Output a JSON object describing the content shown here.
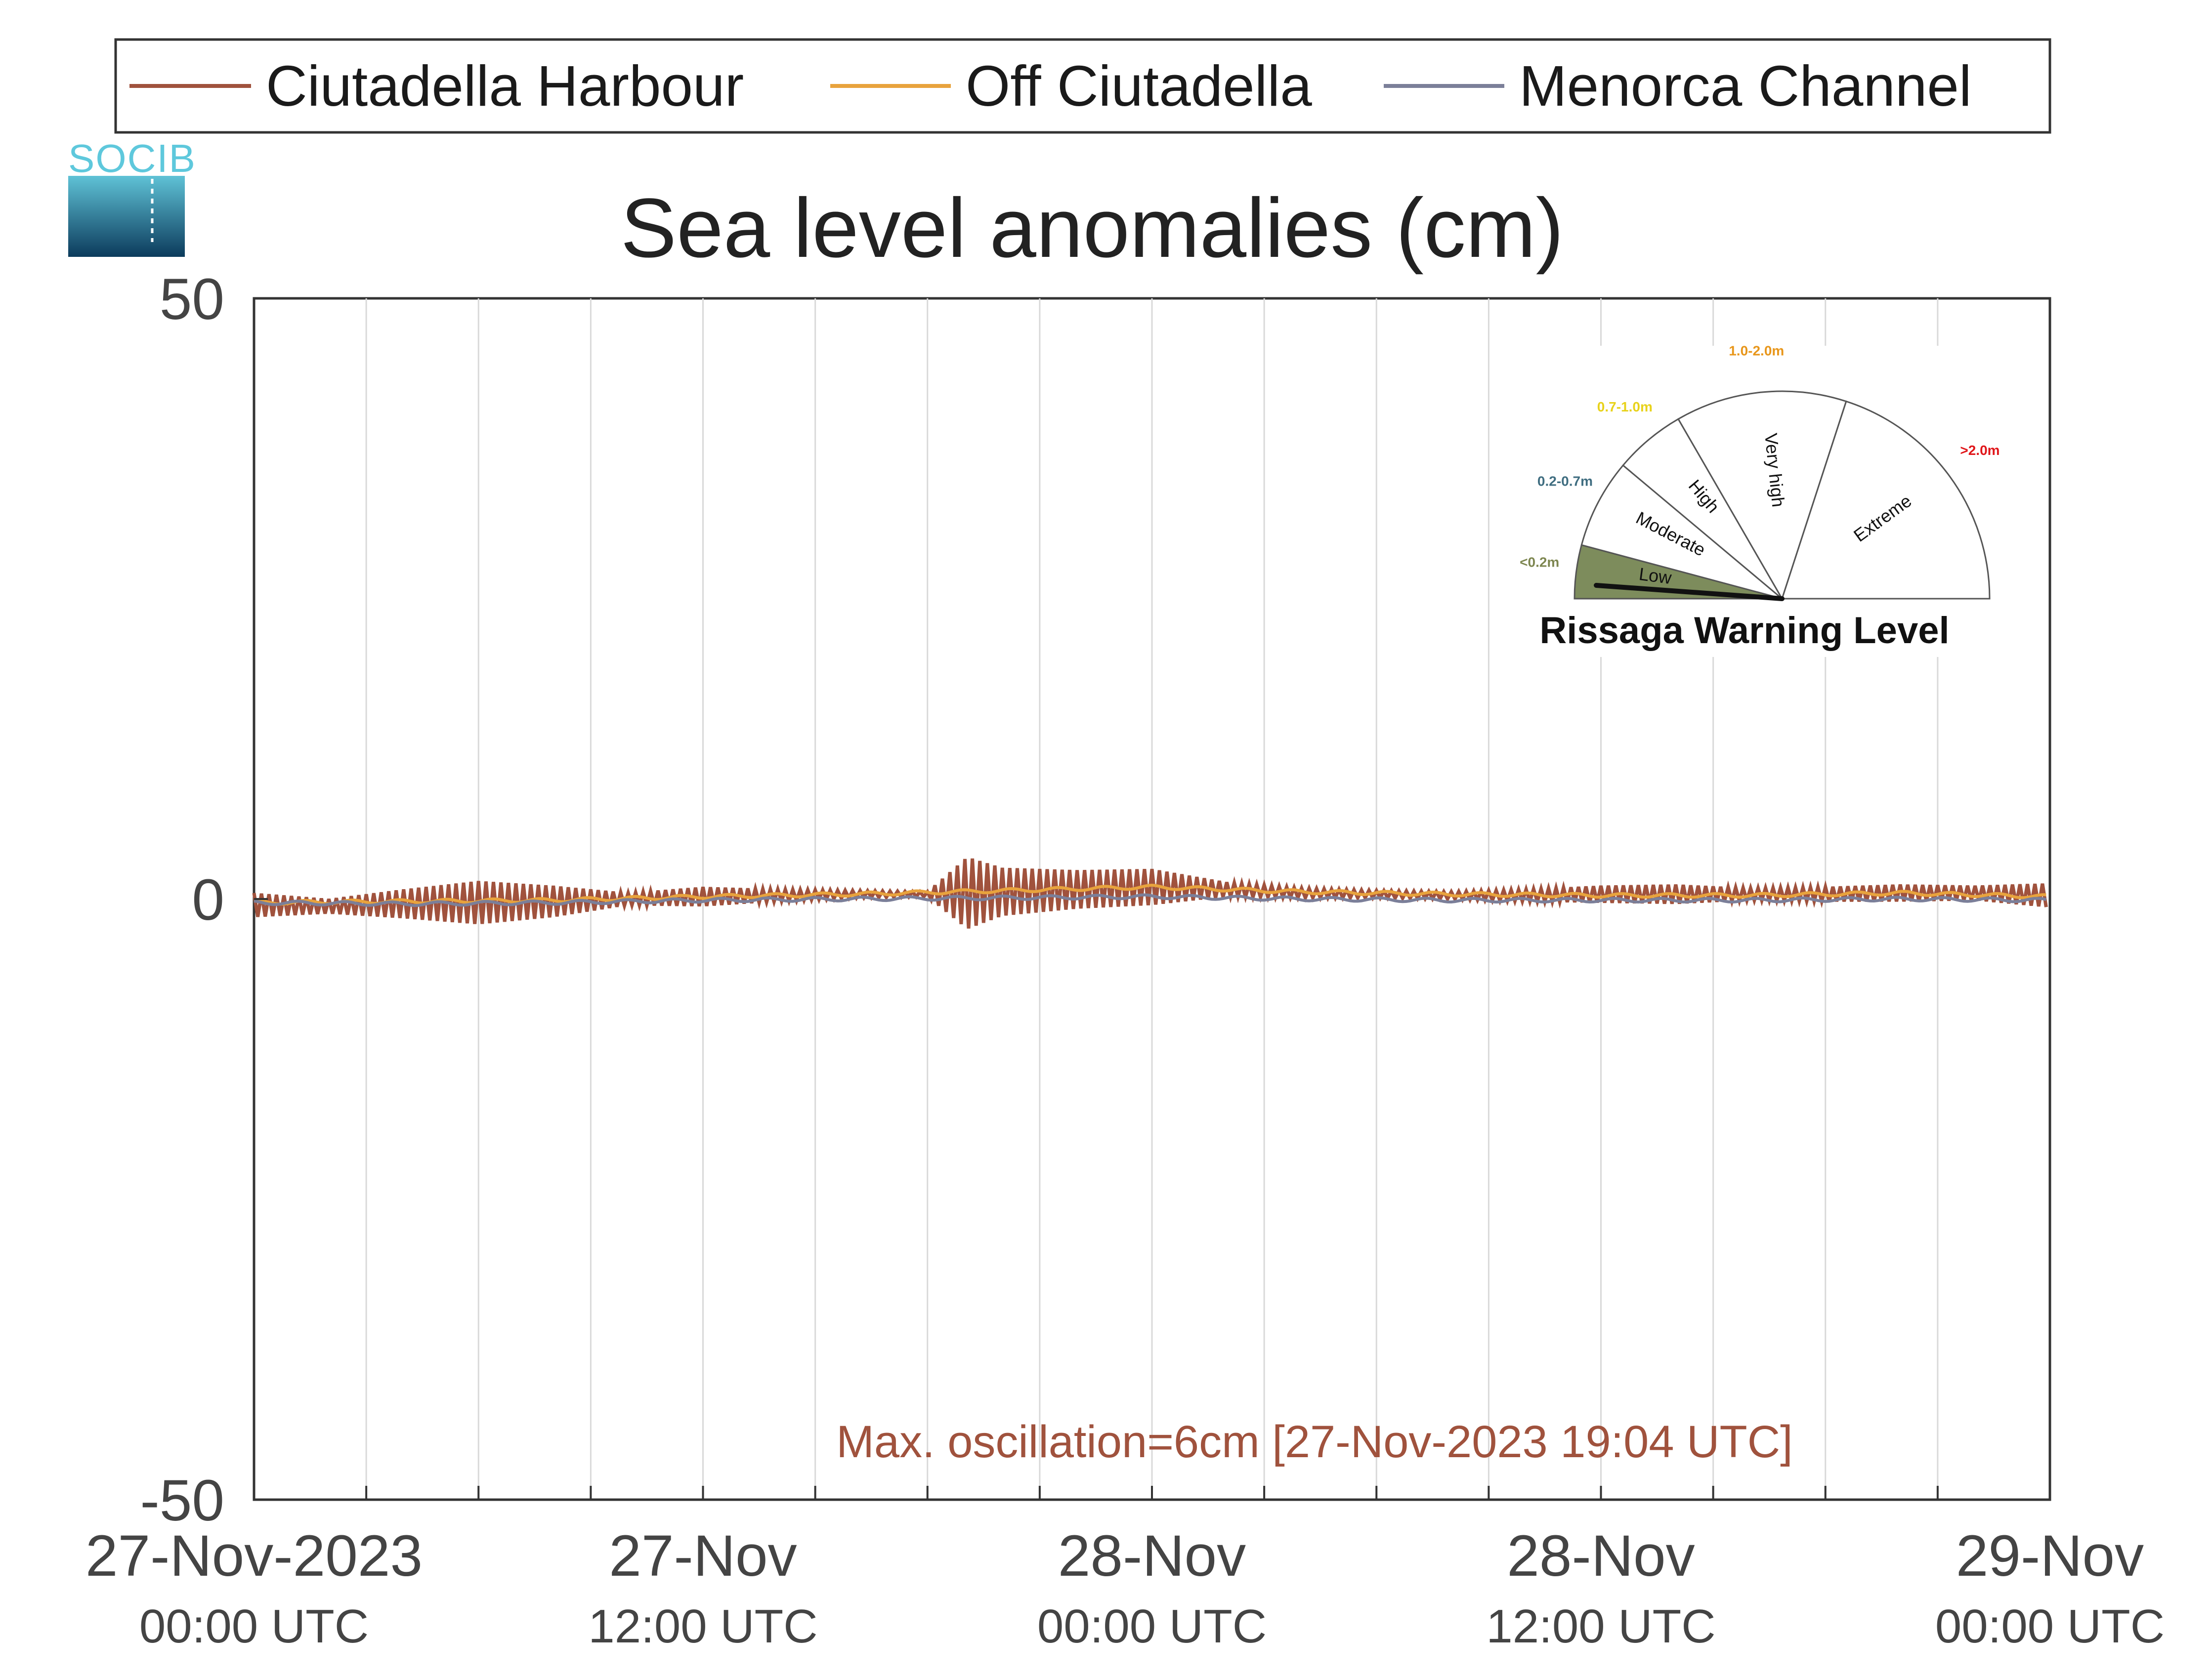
{
  "legend": {
    "items": [
      {
        "label": "Ciutadella Harbour",
        "color": "#a0523d"
      },
      {
        "label": "Off Ciutadella",
        "color": "#e8a33d"
      },
      {
        "label": "Menorca Channel",
        "color": "#7b7f99"
      }
    ]
  },
  "logo": {
    "text": "SOCIB",
    "icon": "socib-logo-icon"
  },
  "chart_data": {
    "type": "line",
    "title": "Sea level anomalies (cm)",
    "ylabel": "",
    "ylim": [
      -50,
      50
    ],
    "yticks": [
      50,
      0,
      -50
    ],
    "ytick_labels": [
      "50",
      "0",
      "-50"
    ],
    "x_range_hours": [
      0,
      48
    ],
    "x_unit": "hours since 27-Nov-2023 00:00 UTC",
    "xticks": [
      {
        "hour": 0,
        "line1": "27-Nov-2023",
        "line2": "00:00 UTC"
      },
      {
        "hour": 12,
        "line1": "27-Nov",
        "line2": "12:00 UTC"
      },
      {
        "hour": 24,
        "line1": "28-Nov",
        "line2": "00:00 UTC"
      },
      {
        "hour": 36,
        "line1": "28-Nov",
        "line2": "12:00 UTC"
      },
      {
        "hour": 48,
        "line1": "29-Nov",
        "line2": "00:00 UTC"
      }
    ],
    "grid_hours": [
      3,
      6,
      9,
      12,
      15,
      18,
      21,
      24,
      27,
      30,
      33,
      36,
      39,
      42,
      45
    ],
    "grid": true,
    "legend_position": "top",
    "series": [
      {
        "name": "Ciutadella Harbour",
        "color": "#a0523d",
        "envelope_hour": [
          0,
          2,
          4,
          6,
          8,
          10,
          12,
          14,
          16,
          18,
          19.06,
          20,
          22,
          24,
          26,
          28,
          30,
          32,
          34,
          36,
          38,
          40,
          42,
          44,
          46,
          48
        ],
        "envelope_amplitude": [
          1.0,
          0.6,
          1.2,
          1.8,
          1.3,
          0.5,
          0.8,
          0.5,
          0.3,
          0.2,
          3.0,
          2.0,
          1.6,
          1.5,
          0.6,
          0.4,
          0.3,
          0.3,
          0.5,
          0.7,
          0.8,
          0.5,
          0.6,
          0.7,
          0.6,
          1.0
        ],
        "baseline": [
          -0.5,
          -0.6,
          -0.4,
          -0.3,
          -0.2,
          0.0,
          0.2,
          0.3,
          0.4,
          0.4,
          0.5,
          0.6,
          0.8,
          1.0,
          0.8,
          0.5,
          0.4,
          0.3,
          0.3,
          0.4,
          0.4,
          0.4,
          0.4,
          0.5,
          0.5,
          0.3
        ]
      },
      {
        "name": "Off Ciutadella",
        "color": "#e8a33d",
        "hour": [
          0,
          4,
          8,
          12,
          16,
          20,
          24,
          28,
          32,
          36,
          40,
          44,
          48
        ],
        "values": [
          -0.3,
          -0.2,
          -0.1,
          0.2,
          0.4,
          0.7,
          1.0,
          0.6,
          0.4,
          0.3,
          0.3,
          0.5,
          0.2
        ]
      },
      {
        "name": "Menorca Channel",
        "color": "#7b7f99",
        "hour": [
          0,
          4,
          8,
          12,
          16,
          20,
          24,
          28,
          32,
          36,
          40,
          44,
          48
        ],
        "values": [
          -0.3,
          -0.4,
          -0.3,
          -0.1,
          0.0,
          0.1,
          0.2,
          0.0,
          -0.1,
          -0.1,
          -0.1,
          0.0,
          -0.1
        ]
      }
    ],
    "annotation": "Max. oscillation=6cm [27-Nov-2023 19:04 UTC]"
  },
  "gauge": {
    "title": "Rissaga Warning Level",
    "current_level": "Low",
    "sectors": [
      {
        "label": "Low",
        "range": "<0.2m",
        "range_color": "#7d8650",
        "fill": "#7d8c5c"
      },
      {
        "label": "Moderate",
        "range": "0.2-0.7m",
        "range_color": "#3f6d80",
        "fill": "#ffffff"
      },
      {
        "label": "High",
        "range": "0.7-1.0m",
        "range_color": "#e8d21a",
        "fill": "#ffffff"
      },
      {
        "label": "Very high",
        "range": "1.0-2.0m",
        "range_color": "#e8961a",
        "fill": "#ffffff"
      },
      {
        "label": "Extreme",
        "range": ">2.0m",
        "range_color": "#e0161a",
        "fill": "#ffffff"
      }
    ]
  }
}
